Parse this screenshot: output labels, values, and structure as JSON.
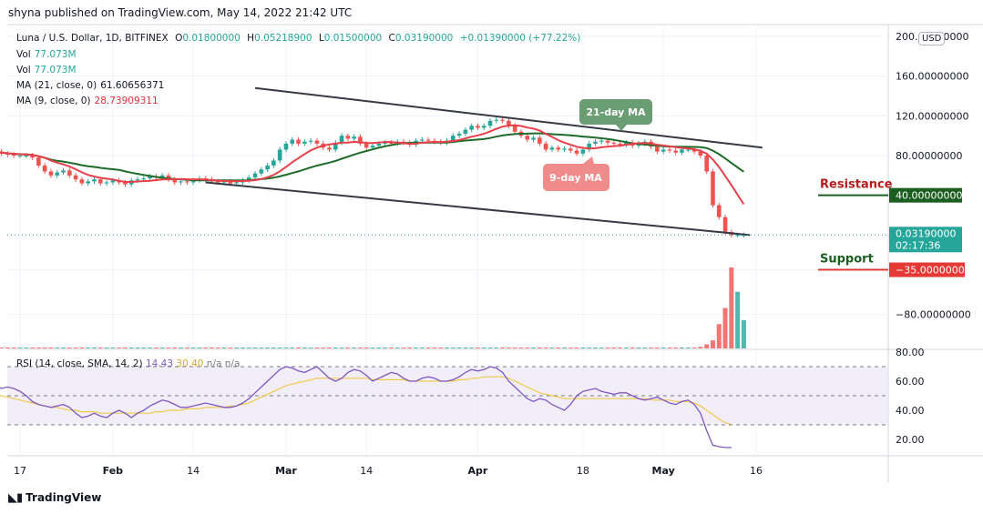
{
  "publisher_line": "shyna published on TradingView.com, May 14, 2022 21:42 UTC",
  "header": {
    "symbol": "Luna / U.S. Dollar, 1D, BITFINEX",
    "ohlc": {
      "open_label": "O",
      "open": "0.01800000",
      "high_label": "H",
      "high": "0.05218900",
      "low_label": "L",
      "low": "0.01500000",
      "close_label": "C",
      "close": "0.03190000",
      "change": "+0.01390000 (+77.22%)"
    },
    "vol_lines": [
      {
        "label": "Vol",
        "value": "77.073M"
      },
      {
        "label": "Vol",
        "value": "77.073M"
      }
    ],
    "ma21": {
      "label": "MA (21, close, 0)",
      "value": "61.60656371"
    },
    "ma9": {
      "label": "MA (9, close, 0)",
      "value": "28.73909311"
    }
  },
  "currency_button": "USD",
  "colors": {
    "up": "#26a69a",
    "down": "#ef5350",
    "ma9": "#e8404a",
    "ma21": "#1e6b2a",
    "trend": "#363a45",
    "resistance": "#1b5e20",
    "support": "#e53935",
    "rsi_line": "#7e57c2",
    "rsi_sma": "#f0c94a",
    "rsi_band": "#ede7f6"
  },
  "annotations": {
    "ma21_bubble": "21-day MA",
    "ma9_bubble": "9-day MA",
    "resistance_label": "Resistance",
    "support_label": "Support"
  },
  "price_scale": {
    "ticks": [
      {
        "value": 200,
        "label": "200.00000000"
      },
      {
        "value": 160,
        "label": "160.00000000"
      },
      {
        "value": 120,
        "label": "120.00000000"
      },
      {
        "value": 80,
        "label": "80.00000000"
      },
      {
        "value": -80,
        "label": "−80.00000000"
      }
    ],
    "last_price_label": "0.03190000",
    "countdown": "02:17:36",
    "resistance_tag": "40.00000000",
    "support_tag": "−35.00000000"
  },
  "rsi": {
    "title": "RSI (14, close, SMA, 14, 2)",
    "value": "14.43",
    "sma_value": "30.40",
    "extra": "n/a  n/a",
    "ticks": [
      {
        "value": 80,
        "label": "80.00"
      },
      {
        "value": 60,
        "label": "60.00"
      },
      {
        "value": 40,
        "label": "40.00"
      },
      {
        "value": 20,
        "label": "20.00"
      }
    ],
    "upper_band": 70,
    "middle_band": 50,
    "lower_band": 30
  },
  "time_axis": [
    "17",
    "Feb",
    "14",
    "Mar",
    "14",
    "Apr",
    "18",
    "May",
    "16"
  ],
  "footer_brand": "TradingView",
  "chart_data": {
    "type": "candlestick",
    "symbol": "LUNA/USD",
    "interval": "1D",
    "y_range": [
      -110,
      210
    ],
    "resistance": 40,
    "support": -35,
    "trendline_upper": [
      {
        "date": "2022-02-24",
        "value": 148
      },
      {
        "date": "2022-05-17",
        "value": 88
      }
    ],
    "trendline_lower": [
      {
        "date": "2022-02-16",
        "value": 53
      },
      {
        "date": "2022-05-15",
        "value": 0
      }
    ],
    "closes": [
      {
        "date": "2022-01-13",
        "v": 84
      },
      {
        "date": "2022-01-14",
        "v": 82
      },
      {
        "date": "2022-01-15",
        "v": 81
      },
      {
        "date": "2022-01-16",
        "v": 80
      },
      {
        "date": "2022-01-17",
        "v": 80
      },
      {
        "date": "2022-01-18",
        "v": 80
      },
      {
        "date": "2022-01-19",
        "v": 78
      },
      {
        "date": "2022-01-20",
        "v": 70
      },
      {
        "date": "2022-01-21",
        "v": 64
      },
      {
        "date": "2022-01-22",
        "v": 60
      },
      {
        "date": "2022-01-23",
        "v": 63
      },
      {
        "date": "2022-01-24",
        "v": 65
      },
      {
        "date": "2022-01-25",
        "v": 60
      },
      {
        "date": "2022-01-26",
        "v": 56
      },
      {
        "date": "2022-01-27",
        "v": 52
      },
      {
        "date": "2022-01-28",
        "v": 54
      },
      {
        "date": "2022-01-29",
        "v": 56
      },
      {
        "date": "2022-01-30",
        "v": 52
      },
      {
        "date": "2022-01-31",
        "v": 53
      },
      {
        "date": "2022-02-01",
        "v": 55
      },
      {
        "date": "2022-02-02",
        "v": 53
      },
      {
        "date": "2022-02-03",
        "v": 51
      },
      {
        "date": "2022-02-04",
        "v": 55
      },
      {
        "date": "2022-02-05",
        "v": 56
      },
      {
        "date": "2022-02-06",
        "v": 57
      },
      {
        "date": "2022-02-07",
        "v": 59
      },
      {
        "date": "2022-02-08",
        "v": 58
      },
      {
        "date": "2022-02-09",
        "v": 60
      },
      {
        "date": "2022-02-10",
        "v": 56
      },
      {
        "date": "2022-02-11",
        "v": 53
      },
      {
        "date": "2022-02-12",
        "v": 54
      },
      {
        "date": "2022-02-13",
        "v": 53
      },
      {
        "date": "2022-02-14",
        "v": 55
      },
      {
        "date": "2022-02-15",
        "v": 57
      },
      {
        "date": "2022-02-16",
        "v": 56
      },
      {
        "date": "2022-02-17",
        "v": 54
      },
      {
        "date": "2022-02-18",
        "v": 53
      },
      {
        "date": "2022-02-19",
        "v": 54
      },
      {
        "date": "2022-02-20",
        "v": 52
      },
      {
        "date": "2022-02-21",
        "v": 53
      },
      {
        "date": "2022-02-22",
        "v": 55
      },
      {
        "date": "2022-02-23",
        "v": 58
      },
      {
        "date": "2022-02-24",
        "v": 62
      },
      {
        "date": "2022-02-25",
        "v": 66
      },
      {
        "date": "2022-02-26",
        "v": 70
      },
      {
        "date": "2022-02-27",
        "v": 75
      },
      {
        "date": "2022-02-28",
        "v": 86
      },
      {
        "date": "2022-03-01",
        "v": 92
      },
      {
        "date": "2022-03-02",
        "v": 96
      },
      {
        "date": "2022-03-03",
        "v": 92
      },
      {
        "date": "2022-03-04",
        "v": 94
      },
      {
        "date": "2022-03-05",
        "v": 95
      },
      {
        "date": "2022-03-06",
        "v": 92
      },
      {
        "date": "2022-03-07",
        "v": 88
      },
      {
        "date": "2022-03-08",
        "v": 86
      },
      {
        "date": "2022-03-09",
        "v": 93
      },
      {
        "date": "2022-03-10",
        "v": 100
      },
      {
        "date": "2022-03-11",
        "v": 97
      },
      {
        "date": "2022-03-12",
        "v": 99
      },
      {
        "date": "2022-03-13",
        "v": 92
      },
      {
        "date": "2022-03-14",
        "v": 88
      },
      {
        "date": "2022-03-15",
        "v": 90
      },
      {
        "date": "2022-03-16",
        "v": 92
      },
      {
        "date": "2022-03-17",
        "v": 93
      },
      {
        "date": "2022-03-18",
        "v": 92
      },
      {
        "date": "2022-03-19",
        "v": 94
      },
      {
        "date": "2022-03-20",
        "v": 93
      },
      {
        "date": "2022-03-21",
        "v": 91
      },
      {
        "date": "2022-03-22",
        "v": 95
      },
      {
        "date": "2022-03-23",
        "v": 96
      },
      {
        "date": "2022-03-24",
        "v": 95
      },
      {
        "date": "2022-03-25",
        "v": 94
      },
      {
        "date": "2022-03-26",
        "v": 93
      },
      {
        "date": "2022-03-27",
        "v": 95
      },
      {
        "date": "2022-03-28",
        "v": 100
      },
      {
        "date": "2022-03-29",
        "v": 102
      },
      {
        "date": "2022-03-30",
        "v": 106
      },
      {
        "date": "2022-03-31",
        "v": 110
      },
      {
        "date": "2022-04-01",
        "v": 108
      },
      {
        "date": "2022-04-02",
        "v": 110
      },
      {
        "date": "2022-04-03",
        "v": 115
      },
      {
        "date": "2022-04-04",
        "v": 116
      },
      {
        "date": "2022-04-05",
        "v": 115
      },
      {
        "date": "2022-04-06",
        "v": 110
      },
      {
        "date": "2022-04-07",
        "v": 104
      },
      {
        "date": "2022-04-08",
        "v": 100
      },
      {
        "date": "2022-04-09",
        "v": 96
      },
      {
        "date": "2022-04-10",
        "v": 98
      },
      {
        "date": "2022-04-11",
        "v": 92
      },
      {
        "date": "2022-04-12",
        "v": 86
      },
      {
        "date": "2022-04-13",
        "v": 88
      },
      {
        "date": "2022-04-14",
        "v": 86
      },
      {
        "date": "2022-04-15",
        "v": 87
      },
      {
        "date": "2022-04-16",
        "v": 85
      },
      {
        "date": "2022-04-17",
        "v": 82
      },
      {
        "date": "2022-04-18",
        "v": 86
      },
      {
        "date": "2022-04-19",
        "v": 92
      },
      {
        "date": "2022-04-20",
        "v": 94
      },
      {
        "date": "2022-04-21",
        "v": 95
      },
      {
        "date": "2022-04-22",
        "v": 93
      },
      {
        "date": "2022-04-23",
        "v": 92
      },
      {
        "date": "2022-04-24",
        "v": 91
      },
      {
        "date": "2022-04-25",
        "v": 93
      },
      {
        "date": "2022-04-26",
        "v": 90
      },
      {
        "date": "2022-04-27",
        "v": 92
      },
      {
        "date": "2022-04-28",
        "v": 94
      },
      {
        "date": "2022-04-29",
        "v": 89
      },
      {
        "date": "2022-04-30",
        "v": 84
      },
      {
        "date": "2022-05-01",
        "v": 86
      },
      {
        "date": "2022-05-02",
        "v": 85
      },
      {
        "date": "2022-05-03",
        "v": 83
      },
      {
        "date": "2022-05-04",
        "v": 86
      },
      {
        "date": "2022-05-05",
        "v": 86
      },
      {
        "date": "2022-05-06",
        "v": 84
      },
      {
        "date": "2022-05-07",
        "v": 80
      },
      {
        "date": "2022-05-08",
        "v": 64
      },
      {
        "date": "2022-05-09",
        "v": 30
      },
      {
        "date": "2022-05-10",
        "v": 18
      },
      {
        "date": "2022-05-11",
        "v": 3
      },
      {
        "date": "2022-05-12",
        "v": 0.02
      },
      {
        "date": "2022-05-13",
        "v": 0.02
      },
      {
        "date": "2022-05-14",
        "v": 0.03
      }
    ],
    "volume_recent": [
      0.02,
      0.05,
      0.1,
      0.3,
      0.5,
      1.0,
      0.7,
      0.35
    ],
    "rsi_values": [
      57,
      55,
      56,
      55,
      53,
      50,
      46,
      44,
      43,
      42,
      43,
      44,
      42,
      38,
      35,
      36,
      38,
      36,
      35,
      38,
      40,
      38,
      35,
      38,
      40,
      43,
      45,
      47,
      46,
      44,
      42,
      42,
      43,
      44,
      45,
      44,
      43,
      42,
      42,
      43,
      45,
      48,
      52,
      56,
      60,
      64,
      68,
      70,
      69,
      67,
      66,
      68,
      70,
      66,
      62,
      60,
      62,
      66,
      68,
      67,
      64,
      60,
      62,
      64,
      66,
      65,
      62,
      60,
      60,
      62,
      63,
      62,
      60,
      60,
      61,
      63,
      66,
      68,
      67,
      68,
      70,
      69,
      66,
      60,
      56,
      52,
      48,
      46,
      48,
      47,
      44,
      42,
      40,
      44,
      50,
      53,
      54,
      55,
      53,
      52,
      51,
      52,
      52,
      50,
      48,
      47,
      48,
      49,
      47,
      45,
      44,
      46,
      47,
      44,
      38,
      26,
      16,
      15,
      14.43,
      14.43
    ],
    "rsi_sma_values": [
      50,
      50,
      49,
      48,
      47,
      46,
      45,
      44,
      43,
      42,
      42,
      41,
      40,
      40,
      39,
      39,
      39,
      38,
      38,
      38,
      38,
      38,
      38,
      38,
      38,
      38,
      39,
      39,
      40,
      40,
      40,
      41,
      41,
      41,
      42,
      42,
      42,
      42,
      43,
      43,
      44,
      45,
      47,
      49,
      51,
      53,
      55,
      57,
      58,
      59,
      60,
      61,
      62,
      62,
      62,
      62,
      62,
      62,
      62,
      62,
      62,
      61,
      61,
      61,
      61,
      61,
      61,
      60,
      60,
      60,
      60,
      60,
      60,
      60,
      60,
      61,
      61,
      62,
      62,
      63,
      63,
      63,
      63,
      62,
      60,
      58,
      56,
      54,
      52,
      51,
      50,
      49,
      48,
      48,
      48,
      48,
      48,
      48,
      48,
      48,
      48,
      48,
      48,
      48,
      48,
      48,
      47,
      47,
      47,
      47,
      46,
      46,
      46,
      45,
      43,
      40,
      37,
      34,
      31.5,
      30.4
    ]
  }
}
